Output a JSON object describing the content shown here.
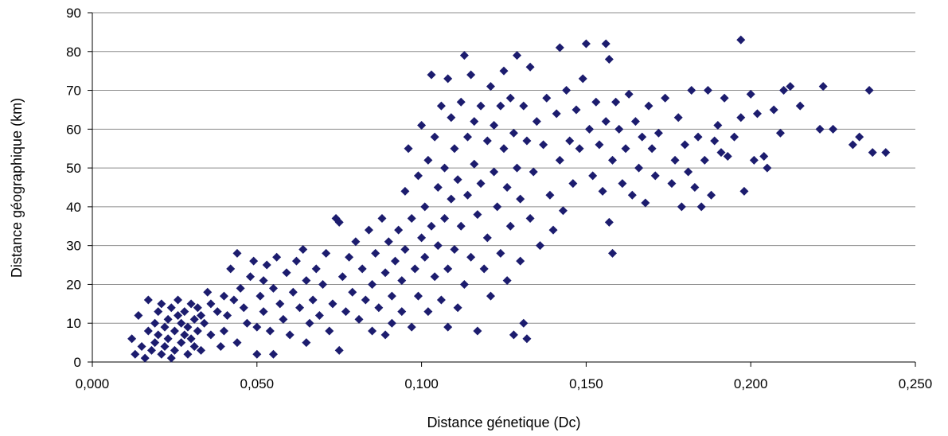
{
  "chart_data": {
    "type": "scatter",
    "title": "",
    "xlabel": "Distance génetique (Dc)",
    "ylabel": "Distance géographique (km)",
    "xlim": [
      0,
      0.25
    ],
    "ylim": [
      0,
      90
    ],
    "x_ticks": [
      "0,000",
      "0,050",
      "0,100",
      "0,150",
      "0,200",
      "0,250"
    ],
    "y_ticks": [
      "0",
      "10",
      "20",
      "30",
      "40",
      "50",
      "60",
      "70",
      "80",
      "90"
    ],
    "grid": "horizontal",
    "legend": "none",
    "marker": "diamond",
    "marker_color": "#1c1c6e",
    "series": [
      {
        "points": [
          [
            0.012,
            6
          ],
          [
            0.013,
            2
          ],
          [
            0.014,
            12
          ],
          [
            0.015,
            4
          ],
          [
            0.016,
            1
          ],
          [
            0.017,
            16
          ],
          [
            0.017,
            8
          ],
          [
            0.018,
            3
          ],
          [
            0.019,
            10
          ],
          [
            0.019,
            5
          ],
          [
            0.02,
            13
          ],
          [
            0.02,
            7
          ],
          [
            0.021,
            2
          ],
          [
            0.021,
            15
          ],
          [
            0.022,
            9
          ],
          [
            0.022,
            4
          ],
          [
            0.023,
            11
          ],
          [
            0.023,
            6
          ],
          [
            0.024,
            14
          ],
          [
            0.024,
            1
          ],
          [
            0.025,
            8
          ],
          [
            0.025,
            3
          ],
          [
            0.026,
            12
          ],
          [
            0.026,
            16
          ],
          [
            0.027,
            5
          ],
          [
            0.027,
            10
          ],
          [
            0.028,
            7
          ],
          [
            0.028,
            13
          ],
          [
            0.029,
            2
          ],
          [
            0.029,
            9
          ],
          [
            0.03,
            15
          ],
          [
            0.03,
            6
          ],
          [
            0.031,
            11
          ],
          [
            0.031,
            4
          ],
          [
            0.032,
            14
          ],
          [
            0.032,
            8
          ],
          [
            0.033,
            12
          ],
          [
            0.033,
            3
          ],
          [
            0.034,
            10
          ],
          [
            0.035,
            18
          ],
          [
            0.036,
            7
          ],
          [
            0.036,
            15
          ],
          [
            0.038,
            13
          ],
          [
            0.039,
            4
          ],
          [
            0.04,
            17
          ],
          [
            0.04,
            8
          ],
          [
            0.041,
            12
          ],
          [
            0.042,
            24
          ],
          [
            0.043,
            16
          ],
          [
            0.044,
            28
          ],
          [
            0.044,
            5
          ],
          [
            0.045,
            19
          ],
          [
            0.046,
            14
          ],
          [
            0.047,
            10
          ],
          [
            0.048,
            22
          ],
          [
            0.049,
            26
          ],
          [
            0.05,
            9
          ],
          [
            0.05,
            2
          ],
          [
            0.051,
            17
          ],
          [
            0.052,
            21
          ],
          [
            0.052,
            13
          ],
          [
            0.053,
            25
          ],
          [
            0.054,
            8
          ],
          [
            0.055,
            19
          ],
          [
            0.055,
            2
          ],
          [
            0.056,
            27
          ],
          [
            0.057,
            15
          ],
          [
            0.058,
            11
          ],
          [
            0.059,
            23
          ],
          [
            0.06,
            7
          ],
          [
            0.061,
            18
          ],
          [
            0.062,
            26
          ],
          [
            0.063,
            14
          ],
          [
            0.064,
            29
          ],
          [
            0.065,
            5
          ],
          [
            0.065,
            21
          ],
          [
            0.066,
            10
          ],
          [
            0.067,
            16
          ],
          [
            0.068,
            24
          ],
          [
            0.069,
            12
          ],
          [
            0.07,
            20
          ],
          [
            0.071,
            28
          ],
          [
            0.072,
            8
          ],
          [
            0.073,
            15
          ],
          [
            0.074,
            37
          ],
          [
            0.075,
            36
          ],
          [
            0.075,
            3
          ],
          [
            0.076,
            22
          ],
          [
            0.077,
            13
          ],
          [
            0.078,
            27
          ],
          [
            0.079,
            18
          ],
          [
            0.08,
            31
          ],
          [
            0.081,
            11
          ],
          [
            0.082,
            24
          ],
          [
            0.083,
            16
          ],
          [
            0.084,
            34
          ],
          [
            0.085,
            20
          ],
          [
            0.085,
            8
          ],
          [
            0.086,
            28
          ],
          [
            0.087,
            14
          ],
          [
            0.088,
            37
          ],
          [
            0.089,
            23
          ],
          [
            0.089,
            7
          ],
          [
            0.09,
            31
          ],
          [
            0.091,
            17
          ],
          [
            0.091,
            10
          ],
          [
            0.092,
            26
          ],
          [
            0.093,
            34
          ],
          [
            0.094,
            21
          ],
          [
            0.094,
            13
          ],
          [
            0.095,
            44
          ],
          [
            0.095,
            29
          ],
          [
            0.096,
            55
          ],
          [
            0.097,
            37
          ],
          [
            0.097,
            9
          ],
          [
            0.098,
            24
          ],
          [
            0.099,
            48
          ],
          [
            0.099,
            17
          ],
          [
            0.1,
            32
          ],
          [
            0.1,
            61
          ],
          [
            0.101,
            40
          ],
          [
            0.101,
            27
          ],
          [
            0.102,
            52
          ],
          [
            0.102,
            13
          ],
          [
            0.103,
            74
          ],
          [
            0.103,
            35
          ],
          [
            0.104,
            22
          ],
          [
            0.104,
            58
          ],
          [
            0.105,
            45
          ],
          [
            0.105,
            30
          ],
          [
            0.106,
            16
          ],
          [
            0.106,
            66
          ],
          [
            0.107,
            50
          ],
          [
            0.107,
            37
          ],
          [
            0.108,
            24
          ],
          [
            0.108,
            73
          ],
          [
            0.108,
            9
          ],
          [
            0.109,
            42
          ],
          [
            0.109,
            63
          ],
          [
            0.11,
            55
          ],
          [
            0.11,
            29
          ],
          [
            0.111,
            47
          ],
          [
            0.111,
            14
          ],
          [
            0.112,
            67
          ],
          [
            0.112,
            35
          ],
          [
            0.113,
            79
          ],
          [
            0.113,
            20
          ],
          [
            0.114,
            58
          ],
          [
            0.114,
            43
          ],
          [
            0.115,
            27
          ],
          [
            0.115,
            74
          ],
          [
            0.116,
            51
          ],
          [
            0.116,
            62
          ],
          [
            0.117,
            38
          ],
          [
            0.117,
            8
          ],
          [
            0.118,
            66
          ],
          [
            0.118,
            46
          ],
          [
            0.119,
            24
          ],
          [
            0.12,
            57
          ],
          [
            0.12,
            32
          ],
          [
            0.121,
            71
          ],
          [
            0.121,
            17
          ],
          [
            0.122,
            49
          ],
          [
            0.122,
            61
          ],
          [
            0.123,
            40
          ],
          [
            0.124,
            66
          ],
          [
            0.124,
            28
          ],
          [
            0.125,
            55
          ],
          [
            0.125,
            75
          ],
          [
            0.126,
            45
          ],
          [
            0.126,
            21
          ],
          [
            0.127,
            68
          ],
          [
            0.127,
            35
          ],
          [
            0.128,
            59
          ],
          [
            0.128,
            7
          ],
          [
            0.129,
            79
          ],
          [
            0.129,
            50
          ],
          [
            0.13,
            42
          ],
          [
            0.13,
            26
          ],
          [
            0.131,
            66
          ],
          [
            0.131,
            10
          ],
          [
            0.132,
            57
          ],
          [
            0.132,
            6
          ],
          [
            0.133,
            37
          ],
          [
            0.133,
            76
          ],
          [
            0.134,
            49
          ],
          [
            0.135,
            62
          ],
          [
            0.136,
            30
          ],
          [
            0.137,
            56
          ],
          [
            0.138,
            68
          ],
          [
            0.139,
            43
          ],
          [
            0.14,
            34
          ],
          [
            0.141,
            64
          ],
          [
            0.142,
            81
          ],
          [
            0.142,
            52
          ],
          [
            0.143,
            39
          ],
          [
            0.144,
            70
          ],
          [
            0.145,
            57
          ],
          [
            0.146,
            46
          ],
          [
            0.147,
            65
          ],
          [
            0.148,
            55
          ],
          [
            0.149,
            73
          ],
          [
            0.15,
            82
          ],
          [
            0.151,
            60
          ],
          [
            0.152,
            48
          ],
          [
            0.153,
            67
          ],
          [
            0.154,
            56
          ],
          [
            0.155,
            44
          ],
          [
            0.156,
            82
          ],
          [
            0.156,
            62
          ],
          [
            0.157,
            78
          ],
          [
            0.157,
            36
          ],
          [
            0.158,
            52
          ],
          [
            0.158,
            28
          ],
          [
            0.159,
            67
          ],
          [
            0.16,
            60
          ],
          [
            0.161,
            46
          ],
          [
            0.162,
            55
          ],
          [
            0.163,
            69
          ],
          [
            0.164,
            43
          ],
          [
            0.165,
            62
          ],
          [
            0.166,
            50
          ],
          [
            0.167,
            58
          ],
          [
            0.168,
            41
          ],
          [
            0.169,
            66
          ],
          [
            0.17,
            55
          ],
          [
            0.171,
            48
          ],
          [
            0.172,
            59
          ],
          [
            0.174,
            68
          ],
          [
            0.176,
            46
          ],
          [
            0.177,
            52
          ],
          [
            0.178,
            63
          ],
          [
            0.179,
            40
          ],
          [
            0.18,
            56
          ],
          [
            0.181,
            49
          ],
          [
            0.182,
            70
          ],
          [
            0.183,
            45
          ],
          [
            0.184,
            58
          ],
          [
            0.185,
            40
          ],
          [
            0.186,
            52
          ],
          [
            0.187,
            70
          ],
          [
            0.188,
            43
          ],
          [
            0.189,
            57
          ],
          [
            0.19,
            61
          ],
          [
            0.191,
            54
          ],
          [
            0.192,
            68
          ],
          [
            0.193,
            53
          ],
          [
            0.195,
            58
          ],
          [
            0.197,
            83
          ],
          [
            0.197,
            63
          ],
          [
            0.198,
            44
          ],
          [
            0.2,
            69
          ],
          [
            0.201,
            52
          ],
          [
            0.202,
            64
          ],
          [
            0.204,
            53
          ],
          [
            0.205,
            50
          ],
          [
            0.207,
            65
          ],
          [
            0.209,
            59
          ],
          [
            0.21,
            70
          ],
          [
            0.212,
            71
          ],
          [
            0.215,
            66
          ],
          [
            0.221,
            60
          ],
          [
            0.222,
            71
          ],
          [
            0.225,
            60
          ],
          [
            0.231,
            56
          ],
          [
            0.233,
            58
          ],
          [
            0.236,
            70
          ],
          [
            0.237,
            54
          ],
          [
            0.241,
            54
          ]
        ]
      }
    ]
  }
}
